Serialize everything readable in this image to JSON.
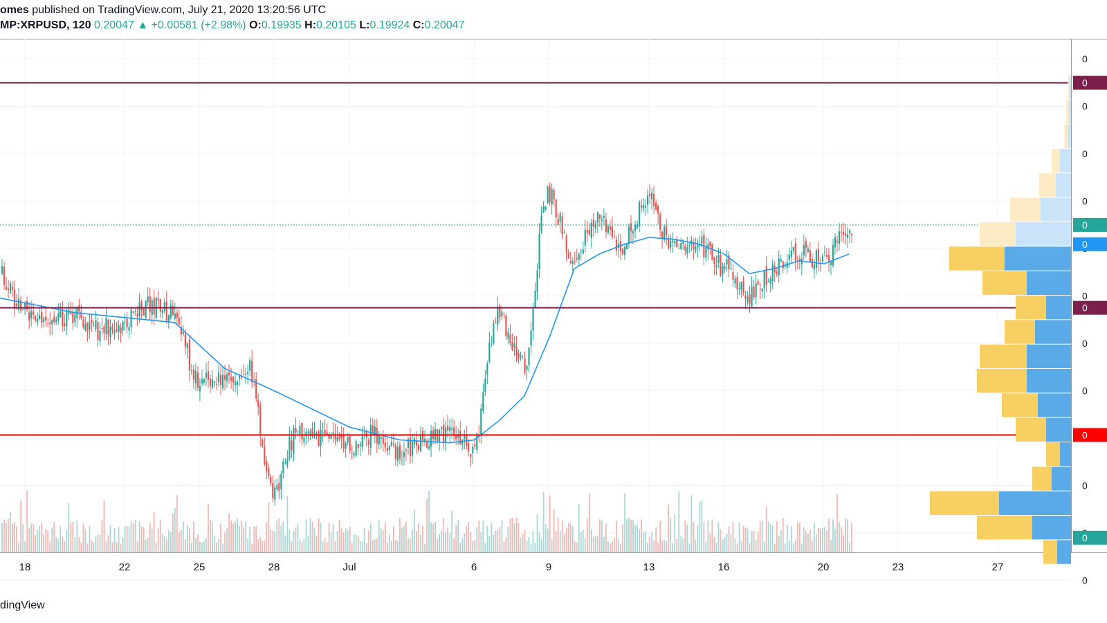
{
  "header": {
    "author": "omes",
    "published_text": "published on TradingView.com, July 21, 2020 13:20:56 UTC",
    "symbol": "MP:XRPUSD, 120",
    "last": "0.20047",
    "change": "▲ +0.00581 (+2.98%)",
    "o_label": "O:",
    "o": "0.19935",
    "h_label": "H:",
    "h": "0.20105",
    "l_label": "L:",
    "l": "0.19924",
    "c_label": "C:",
    "c": "0.20047"
  },
  "footer": {
    "brand": "dingView"
  },
  "colors": {
    "up": "#26a69a",
    "down": "#ef5350",
    "sma": "#2196f3",
    "resistance": "#7b1f4b",
    "support": "#ff0000",
    "vp_up": "#5aaae8",
    "vp_down": "#f7cf63"
  },
  "chart_data": {
    "type": "candlestick",
    "x_ticks": [
      "18",
      "22",
      "25",
      "28",
      "Jul",
      "6",
      "9",
      "13",
      "16",
      "20",
      "23",
      "27"
    ],
    "price_axis_labels": [
      "0",
      "0",
      "0",
      "0",
      "0",
      "0",
      "0",
      "0",
      "0",
      "0",
      "0",
      "0"
    ],
    "level_tags": [
      "0",
      "0",
      "0",
      "0",
      "0",
      "0"
    ],
    "horizontal_levels": [
      {
        "kind": "resistance",
        "price": 0.215
      },
      {
        "kind": "resistance",
        "price": 0.192
      },
      {
        "kind": "support",
        "price": 0.179
      }
    ],
    "current_price": 0.20047,
    "price_range": [
      0.167,
      0.2195
    ],
    "daily_path": [
      {
        "date": "Jun 17",
        "price": 0.1955
      },
      {
        "date": "Jun 18",
        "price": 0.1915
      },
      {
        "date": "Jun 19",
        "price": 0.1905
      },
      {
        "date": "Jun 20",
        "price": 0.1915
      },
      {
        "date": "Jun 21",
        "price": 0.1898
      },
      {
        "date": "Jun 22",
        "price": 0.1905
      },
      {
        "date": "Jun 23",
        "price": 0.1922
      },
      {
        "date": "Jun 24",
        "price": 0.1915
      },
      {
        "date": "Jun 25",
        "price": 0.1845
      },
      {
        "date": "Jun 26",
        "price": 0.1845
      },
      {
        "date": "Jun 27",
        "price": 0.1858
      },
      {
        "date": "Jun 28",
        "price": 0.1735
      },
      {
        "date": "Jun 29",
        "price": 0.1795
      },
      {
        "date": "Jun 30",
        "price": 0.1788
      },
      {
        "date": "Jul 1",
        "price": 0.1778
      },
      {
        "date": "Jul 2",
        "price": 0.179
      },
      {
        "date": "Jul 3",
        "price": 0.177
      },
      {
        "date": "Jul 4",
        "price": 0.1785
      },
      {
        "date": "Jul 5",
        "price": 0.1788
      },
      {
        "date": "Jul 6",
        "price": 0.1778
      },
      {
        "date": "Jul 7",
        "price": 0.1912
      },
      {
        "date": "Jul 8",
        "price": 0.186
      },
      {
        "date": "Jul 9",
        "price": 0.2035
      },
      {
        "date": "Jul 10",
        "price": 0.1975
      },
      {
        "date": "Jul 11",
        "price": 0.2008
      },
      {
        "date": "Jul 12",
        "price": 0.1985
      },
      {
        "date": "Jul 13",
        "price": 0.2035
      },
      {
        "date": "Jul 14",
        "price": 0.198
      },
      {
        "date": "Jul 15",
        "price": 0.1985
      },
      {
        "date": "Jul 16",
        "price": 0.1962
      },
      {
        "date": "Jul 17",
        "price": 0.193
      },
      {
        "date": "Jul 18",
        "price": 0.1958
      },
      {
        "date": "Jul 19",
        "price": 0.1978
      },
      {
        "date": "Jul 20",
        "price": 0.1968
      },
      {
        "date": "Jul 21",
        "price": 0.2005
      }
    ],
    "sma_path": [
      {
        "date": "Jun 17",
        "price": 0.193
      },
      {
        "date": "Jun 18",
        "price": 0.1925
      },
      {
        "date": "Jun 20",
        "price": 0.1915
      },
      {
        "date": "Jun 22",
        "price": 0.191
      },
      {
        "date": "Jun 24",
        "price": 0.1905
      },
      {
        "date": "Jun 26",
        "price": 0.1858
      },
      {
        "date": "Jun 28",
        "price": 0.1835
      },
      {
        "date": "Jul 1",
        "price": 0.1798
      },
      {
        "date": "Jul 3",
        "price": 0.1785
      },
      {
        "date": "Jul 5",
        "price": 0.1782
      },
      {
        "date": "Jul 6",
        "price": 0.1785
      },
      {
        "date": "Jul 7",
        "price": 0.1805
      },
      {
        "date": "Jul 8",
        "price": 0.183
      },
      {
        "date": "Jul 9",
        "price": 0.189
      },
      {
        "date": "Jul 10",
        "price": 0.196
      },
      {
        "date": "Jul 11",
        "price": 0.1975
      },
      {
        "date": "Jul 12",
        "price": 0.1985
      },
      {
        "date": "Jul 13",
        "price": 0.1992
      },
      {
        "date": "Jul 14",
        "price": 0.199
      },
      {
        "date": "Jul 15",
        "price": 0.1985
      },
      {
        "date": "Jul 16",
        "price": 0.1975
      },
      {
        "date": "Jul 17",
        "price": 0.1955
      },
      {
        "date": "Jul 18",
        "price": 0.196
      },
      {
        "date": "Jul 19",
        "price": 0.1968
      },
      {
        "date": "Jul 20",
        "price": 0.1965
      },
      {
        "date": "Jul 21",
        "price": 0.1975
      }
    ],
    "volume_profile": [
      {
        "price": 0.2145,
        "up": 0.005,
        "down": 0.006
      },
      {
        "price": 0.212,
        "up": 0.008,
        "down": 0.01
      },
      {
        "price": 0.2095,
        "up": 0.012,
        "down": 0.012
      },
      {
        "price": 0.207,
        "up": 0.04,
        "down": 0.03
      },
      {
        "price": 0.2045,
        "up": 0.055,
        "down": 0.06
      },
      {
        "price": 0.202,
        "up": 0.11,
        "down": 0.11
      },
      {
        "price": 0.1995,
        "up": 0.2,
        "down": 0.13
      },
      {
        "price": 0.197,
        "up": 0.24,
        "down": 0.2
      },
      {
        "price": 0.1945,
        "up": 0.16,
        "down": 0.16
      },
      {
        "price": 0.192,
        "up": 0.09,
        "down": 0.11
      },
      {
        "price": 0.1895,
        "up": 0.13,
        "down": 0.11
      },
      {
        "price": 0.187,
        "up": 0.16,
        "down": 0.17
      },
      {
        "price": 0.1845,
        "up": 0.16,
        "down": 0.18
      },
      {
        "price": 0.182,
        "up": 0.12,
        "down": 0.13
      },
      {
        "price": 0.1795,
        "up": 0.09,
        "down": 0.11
      },
      {
        "price": 0.177,
        "up": 0.04,
        "down": 0.05
      },
      {
        "price": 0.1745,
        "up": 0.07,
        "down": 0.07
      },
      {
        "price": 0.172,
        "up": 0.26,
        "down": 0.25
      },
      {
        "price": 0.1695,
        "up": 0.14,
        "down": 0.2
      },
      {
        "price": 0.167,
        "up": 0.05,
        "down": 0.05
      }
    ]
  }
}
